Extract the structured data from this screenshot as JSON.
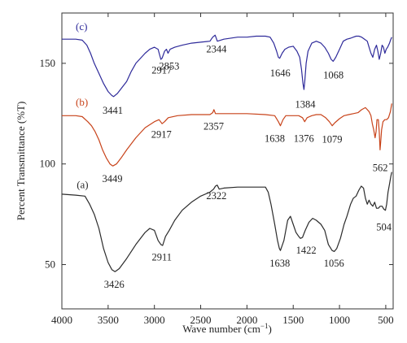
{
  "chart_data": {
    "type": "line",
    "xlabel_main": "Wave number (cm",
    "xlabel_sup": "−1",
    "xlabel_tail": ")",
    "ylabel": "Percent Transmittance (%T)",
    "xlim": [
      4000,
      420
    ],
    "ylim": [
      28,
      175
    ],
    "x_ticks": [
      {
        "value": 4000,
        "label": "4000"
      },
      {
        "value": 3500,
        "label": "3500"
      },
      {
        "value": 3000,
        "label": "3000"
      },
      {
        "value": 2500,
        "label": "2500"
      },
      {
        "value": 2000,
        "label": "2000"
      },
      {
        "value": 1500,
        "label": "1500"
      },
      {
        "value": 1000,
        "label": "1000"
      },
      {
        "value": 500,
        "label": "500"
      }
    ],
    "y_ticks": [
      {
        "value": 50,
        "label": "50"
      },
      {
        "value": 100,
        "label": "100"
      },
      {
        "value": 150,
        "label": "150"
      }
    ],
    "series": [
      {
        "name": "(a)",
        "color": "#2b2b2b",
        "label_at": [
          3840,
          88
        ],
        "points": [
          [
            4000,
            85
          ],
          [
            3850,
            84.5
          ],
          [
            3750,
            84
          ],
          [
            3700,
            80
          ],
          [
            3650,
            75
          ],
          [
            3600,
            68
          ],
          [
            3550,
            58
          ],
          [
            3500,
            51
          ],
          [
            3460,
            47.5
          ],
          [
            3426,
            46.5
          ],
          [
            3380,
            48
          ],
          [
            3300,
            53
          ],
          [
            3200,
            60
          ],
          [
            3100,
            66
          ],
          [
            3050,
            68
          ],
          [
            3000,
            67
          ],
          [
            2960,
            62
          ],
          [
            2930,
            60
          ],
          [
            2911,
            59.5
          ],
          [
            2880,
            64
          ],
          [
            2840,
            67
          ],
          [
            2780,
            72
          ],
          [
            2700,
            77
          ],
          [
            2600,
            81
          ],
          [
            2500,
            84
          ],
          [
            2400,
            86
          ],
          [
            2360,
            87.5
          ],
          [
            2340,
            89
          ],
          [
            2322,
            89.5
          ],
          [
            2300,
            87.5
          ],
          [
            2250,
            88
          ],
          [
            2100,
            88.5
          ],
          [
            1900,
            88.5
          ],
          [
            1800,
            88.5
          ],
          [
            1770,
            86
          ],
          [
            1740,
            80
          ],
          [
            1700,
            70
          ],
          [
            1670,
            62
          ],
          [
            1650,
            58
          ],
          [
            1638,
            57
          ],
          [
            1600,
            62
          ],
          [
            1560,
            72
          ],
          [
            1530,
            74
          ],
          [
            1500,
            70
          ],
          [
            1470,
            66
          ],
          [
            1440,
            64
          ],
          [
            1422,
            63
          ],
          [
            1400,
            63.5
          ],
          [
            1370,
            67
          ],
          [
            1330,
            71
          ],
          [
            1290,
            73
          ],
          [
            1250,
            72
          ],
          [
            1200,
            70
          ],
          [
            1160,
            67
          ],
          [
            1120,
            60
          ],
          [
            1080,
            57
          ],
          [
            1056,
            56.5
          ],
          [
            1030,
            58
          ],
          [
            990,
            63
          ],
          [
            950,
            70
          ],
          [
            920,
            74
          ],
          [
            880,
            80
          ],
          [
            850,
            83
          ],
          [
            820,
            84
          ],
          [
            790,
            87
          ],
          [
            765,
            89
          ],
          [
            740,
            88
          ],
          [
            720,
            83
          ],
          [
            700,
            80
          ],
          [
            680,
            82
          ],
          [
            660,
            80
          ],
          [
            640,
            79
          ],
          [
            620,
            81
          ],
          [
            600,
            78
          ],
          [
            580,
            78
          ],
          [
            560,
            79
          ],
          [
            540,
            79
          ],
          [
            520,
            77.5
          ],
          [
            504,
            77
          ],
          [
            490,
            80
          ],
          [
            475,
            86
          ],
          [
            460,
            90
          ],
          [
            445,
            94
          ],
          [
            435,
            96
          ]
        ]
      },
      {
        "name": "(b)",
        "color": "#c8431a",
        "label_at": [
          3850,
          129
        ],
        "points": [
          [
            4000,
            124
          ],
          [
            3850,
            124
          ],
          [
            3780,
            123.5
          ],
          [
            3720,
            121
          ],
          [
            3680,
            119
          ],
          [
            3640,
            116
          ],
          [
            3600,
            112
          ],
          [
            3560,
            107
          ],
          [
            3520,
            103
          ],
          [
            3480,
            100
          ],
          [
            3449,
            99
          ],
          [
            3410,
            100
          ],
          [
            3360,
            103
          ],
          [
            3300,
            107
          ],
          [
            3200,
            113
          ],
          [
            3100,
            118
          ],
          [
            3000,
            121
          ],
          [
            2950,
            122
          ],
          [
            2917,
            120
          ],
          [
            2890,
            121
          ],
          [
            2850,
            123
          ],
          [
            2750,
            124
          ],
          [
            2600,
            124.5
          ],
          [
            2400,
            124.5
          ],
          [
            2370,
            125.5
          ],
          [
            2357,
            127
          ],
          [
            2340,
            125
          ],
          [
            2200,
            125
          ],
          [
            2000,
            125
          ],
          [
            1800,
            124.5
          ],
          [
            1700,
            124
          ],
          [
            1660,
            121
          ],
          [
            1638,
            119
          ],
          [
            1610,
            122
          ],
          [
            1580,
            124
          ],
          [
            1500,
            124
          ],
          [
            1440,
            124
          ],
          [
            1400,
            123
          ],
          [
            1376,
            121
          ],
          [
            1350,
            123
          ],
          [
            1300,
            124
          ],
          [
            1250,
            124.5
          ],
          [
            1200,
            124.5
          ],
          [
            1150,
            123
          ],
          [
            1110,
            121
          ],
          [
            1079,
            119
          ],
          [
            1050,
            120.5
          ],
          [
            1000,
            122.5
          ],
          [
            950,
            124
          ],
          [
            900,
            124.5
          ],
          [
            850,
            125
          ],
          [
            800,
            125.5
          ],
          [
            760,
            127
          ],
          [
            740,
            127.5
          ],
          [
            720,
            128
          ],
          [
            700,
            127
          ],
          [
            680,
            126
          ],
          [
            660,
            124
          ],
          [
            645,
            120
          ],
          [
            630,
            117
          ],
          [
            615,
            113
          ],
          [
            605,
            116
          ],
          [
            595,
            122
          ],
          [
            580,
            122
          ],
          [
            570,
            116
          ],
          [
            562,
            107
          ],
          [
            555,
            111
          ],
          [
            545,
            117
          ],
          [
            530,
            121
          ],
          [
            510,
            122
          ],
          [
            490,
            122
          ],
          [
            470,
            123
          ],
          [
            450,
            126
          ],
          [
            435,
            130
          ]
        ]
      },
      {
        "name": "(c)",
        "color": "#2e2a9a",
        "label_at": [
          3850,
          166.5
        ],
        "points": [
          [
            4000,
            162
          ],
          [
            3850,
            162
          ],
          [
            3780,
            161.5
          ],
          [
            3730,
            159
          ],
          [
            3690,
            155
          ],
          [
            3650,
            150
          ],
          [
            3600,
            145
          ],
          [
            3550,
            140
          ],
          [
            3500,
            136
          ],
          [
            3460,
            134
          ],
          [
            3441,
            133.5
          ],
          [
            3400,
            135
          ],
          [
            3350,
            138
          ],
          [
            3300,
            141
          ],
          [
            3250,
            146
          ],
          [
            3200,
            150
          ],
          [
            3100,
            155
          ],
          [
            3050,
            157
          ],
          [
            3000,
            158
          ],
          [
            2960,
            157
          ],
          [
            2930,
            152
          ],
          [
            2917,
            152.5
          ],
          [
            2890,
            156
          ],
          [
            2870,
            157
          ],
          [
            2853,
            155
          ],
          [
            2830,
            157
          ],
          [
            2780,
            158
          ],
          [
            2700,
            159
          ],
          [
            2600,
            160
          ],
          [
            2500,
            160.5
          ],
          [
            2400,
            161
          ],
          [
            2370,
            163
          ],
          [
            2344,
            164
          ],
          [
            2320,
            161
          ],
          [
            2250,
            162
          ],
          [
            2100,
            163
          ],
          [
            2000,
            163
          ],
          [
            1900,
            163.5
          ],
          [
            1800,
            163.5
          ],
          [
            1750,
            163
          ],
          [
            1710,
            160
          ],
          [
            1680,
            156
          ],
          [
            1660,
            153
          ],
          [
            1646,
            152.5
          ],
          [
            1620,
            155
          ],
          [
            1590,
            157
          ],
          [
            1550,
            158
          ],
          [
            1500,
            158.5
          ],
          [
            1460,
            156
          ],
          [
            1430,
            153
          ],
          [
            1410,
            147
          ],
          [
            1395,
            140
          ],
          [
            1384,
            137
          ],
          [
            1375,
            141
          ],
          [
            1360,
            150
          ],
          [
            1340,
            156
          ],
          [
            1300,
            160
          ],
          [
            1250,
            161
          ],
          [
            1200,
            160
          ],
          [
            1160,
            158
          ],
          [
            1120,
            155
          ],
          [
            1090,
            152
          ],
          [
            1068,
            151
          ],
          [
            1040,
            153
          ],
          [
            1000,
            157
          ],
          [
            960,
            161
          ],
          [
            920,
            162
          ],
          [
            880,
            162.5
          ],
          [
            850,
            163
          ],
          [
            820,
            163.5
          ],
          [
            790,
            163.5
          ],
          [
            760,
            163
          ],
          [
            730,
            162
          ],
          [
            700,
            161
          ],
          [
            680,
            158
          ],
          [
            660,
            155
          ],
          [
            640,
            153
          ],
          [
            620,
            157
          ],
          [
            600,
            159
          ],
          [
            585,
            156
          ],
          [
            570,
            152
          ],
          [
            555,
            155
          ],
          [
            540,
            159
          ],
          [
            525,
            158
          ],
          [
            510,
            155
          ],
          [
            495,
            157
          ],
          [
            480,
            158
          ],
          [
            460,
            160
          ],
          [
            445,
            162
          ],
          [
            435,
            163
          ]
        ]
      }
    ],
    "annotations": [
      {
        "text": "3426",
        "x": 3435,
        "y": 38.5
      },
      {
        "text": "2911",
        "x": 2920,
        "y": 52
      },
      {
        "text": "2322",
        "x": 2330,
        "y": 82.5
      },
      {
        "text": "1638",
        "x": 1645,
        "y": 49
      },
      {
        "text": "1422",
        "x": 1360,
        "y": 55.5
      },
      {
        "text": "1056",
        "x": 1060,
        "y": 49
      },
      {
        "text": "504",
        "x": 520,
        "y": 67
      },
      {
        "text": "3449",
        "x": 3455,
        "y": 91
      },
      {
        "text": "2917",
        "x": 2925,
        "y": 113
      },
      {
        "text": "2357",
        "x": 2360,
        "y": 117
      },
      {
        "text": "1638",
        "x": 1700,
        "y": 111
      },
      {
        "text": "1376",
        "x": 1385,
        "y": 111
      },
      {
        "text": "1079",
        "x": 1080,
        "y": 110.5
      },
      {
        "text": "562",
        "x": 560,
        "y": 96.5
      },
      {
        "text": "3441",
        "x": 3450,
        "y": 125
      },
      {
        "text": "2917",
        "x": 2920,
        "y": 145
      },
      {
        "text": "2853",
        "x": 2840,
        "y": 147
      },
      {
        "text": "2344",
        "x": 2330,
        "y": 155.5
      },
      {
        "text": "1646",
        "x": 1640,
        "y": 143.5
      },
      {
        "text": "1384",
        "x": 1370,
        "y": 128
      },
      {
        "text": "1068",
        "x": 1065,
        "y": 142.5
      }
    ]
  }
}
